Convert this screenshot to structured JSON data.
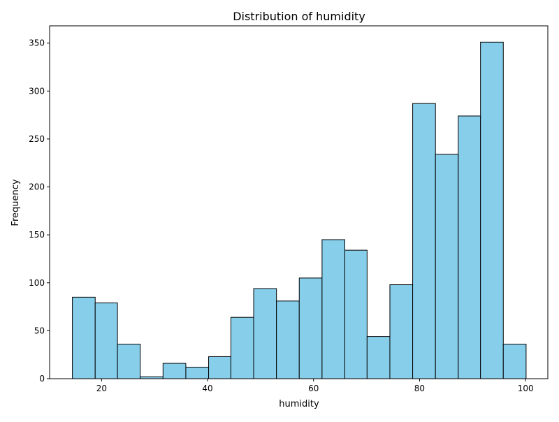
{
  "chart_data": {
    "type": "bar",
    "title": "Distribution of humidity",
    "xlabel": "humidity",
    "ylabel": "Frequency",
    "xlim": [
      10.2,
      104.2
    ],
    "ylim": [
      0,
      368
    ],
    "xticks": [
      20,
      40,
      60,
      80,
      100
    ],
    "yticks": [
      0,
      50,
      100,
      150,
      200,
      250,
      300,
      350
    ],
    "bins": [
      {
        "x0": 14.5,
        "x1": 18.8,
        "count": 85
      },
      {
        "x0": 18.8,
        "x1": 23.0,
        "count": 79
      },
      {
        "x0": 23.0,
        "x1": 27.3,
        "count": 36
      },
      {
        "x0": 27.3,
        "x1": 31.6,
        "count": 2
      },
      {
        "x0": 31.6,
        "x1": 35.9,
        "count": 16
      },
      {
        "x0": 35.9,
        "x1": 40.2,
        "count": 12
      },
      {
        "x0": 40.2,
        "x1": 44.4,
        "count": 23
      },
      {
        "x0": 44.4,
        "x1": 48.7,
        "count": 64
      },
      {
        "x0": 48.7,
        "x1": 53.0,
        "count": 94
      },
      {
        "x0": 53.0,
        "x1": 57.3,
        "count": 81
      },
      {
        "x0": 57.3,
        "x1": 61.6,
        "count": 105
      },
      {
        "x0": 61.6,
        "x1": 65.9,
        "count": 145
      },
      {
        "x0": 65.9,
        "x1": 70.1,
        "count": 134
      },
      {
        "x0": 70.1,
        "x1": 74.4,
        "count": 44
      },
      {
        "x0": 74.4,
        "x1": 78.7,
        "count": 98
      },
      {
        "x0": 78.7,
        "x1": 83.0,
        "count": 287
      },
      {
        "x0": 83.0,
        "x1": 87.3,
        "count": 234
      },
      {
        "x0": 87.3,
        "x1": 91.5,
        "count": 274
      },
      {
        "x0": 91.5,
        "x1": 95.8,
        "count": 351
      },
      {
        "x0": 95.8,
        "x1": 100.1,
        "count": 36
      }
    ],
    "colors": {
      "bar_fill": "#87ceeb",
      "bar_edge": "#000000"
    },
    "grid": false,
    "legend": "none"
  }
}
